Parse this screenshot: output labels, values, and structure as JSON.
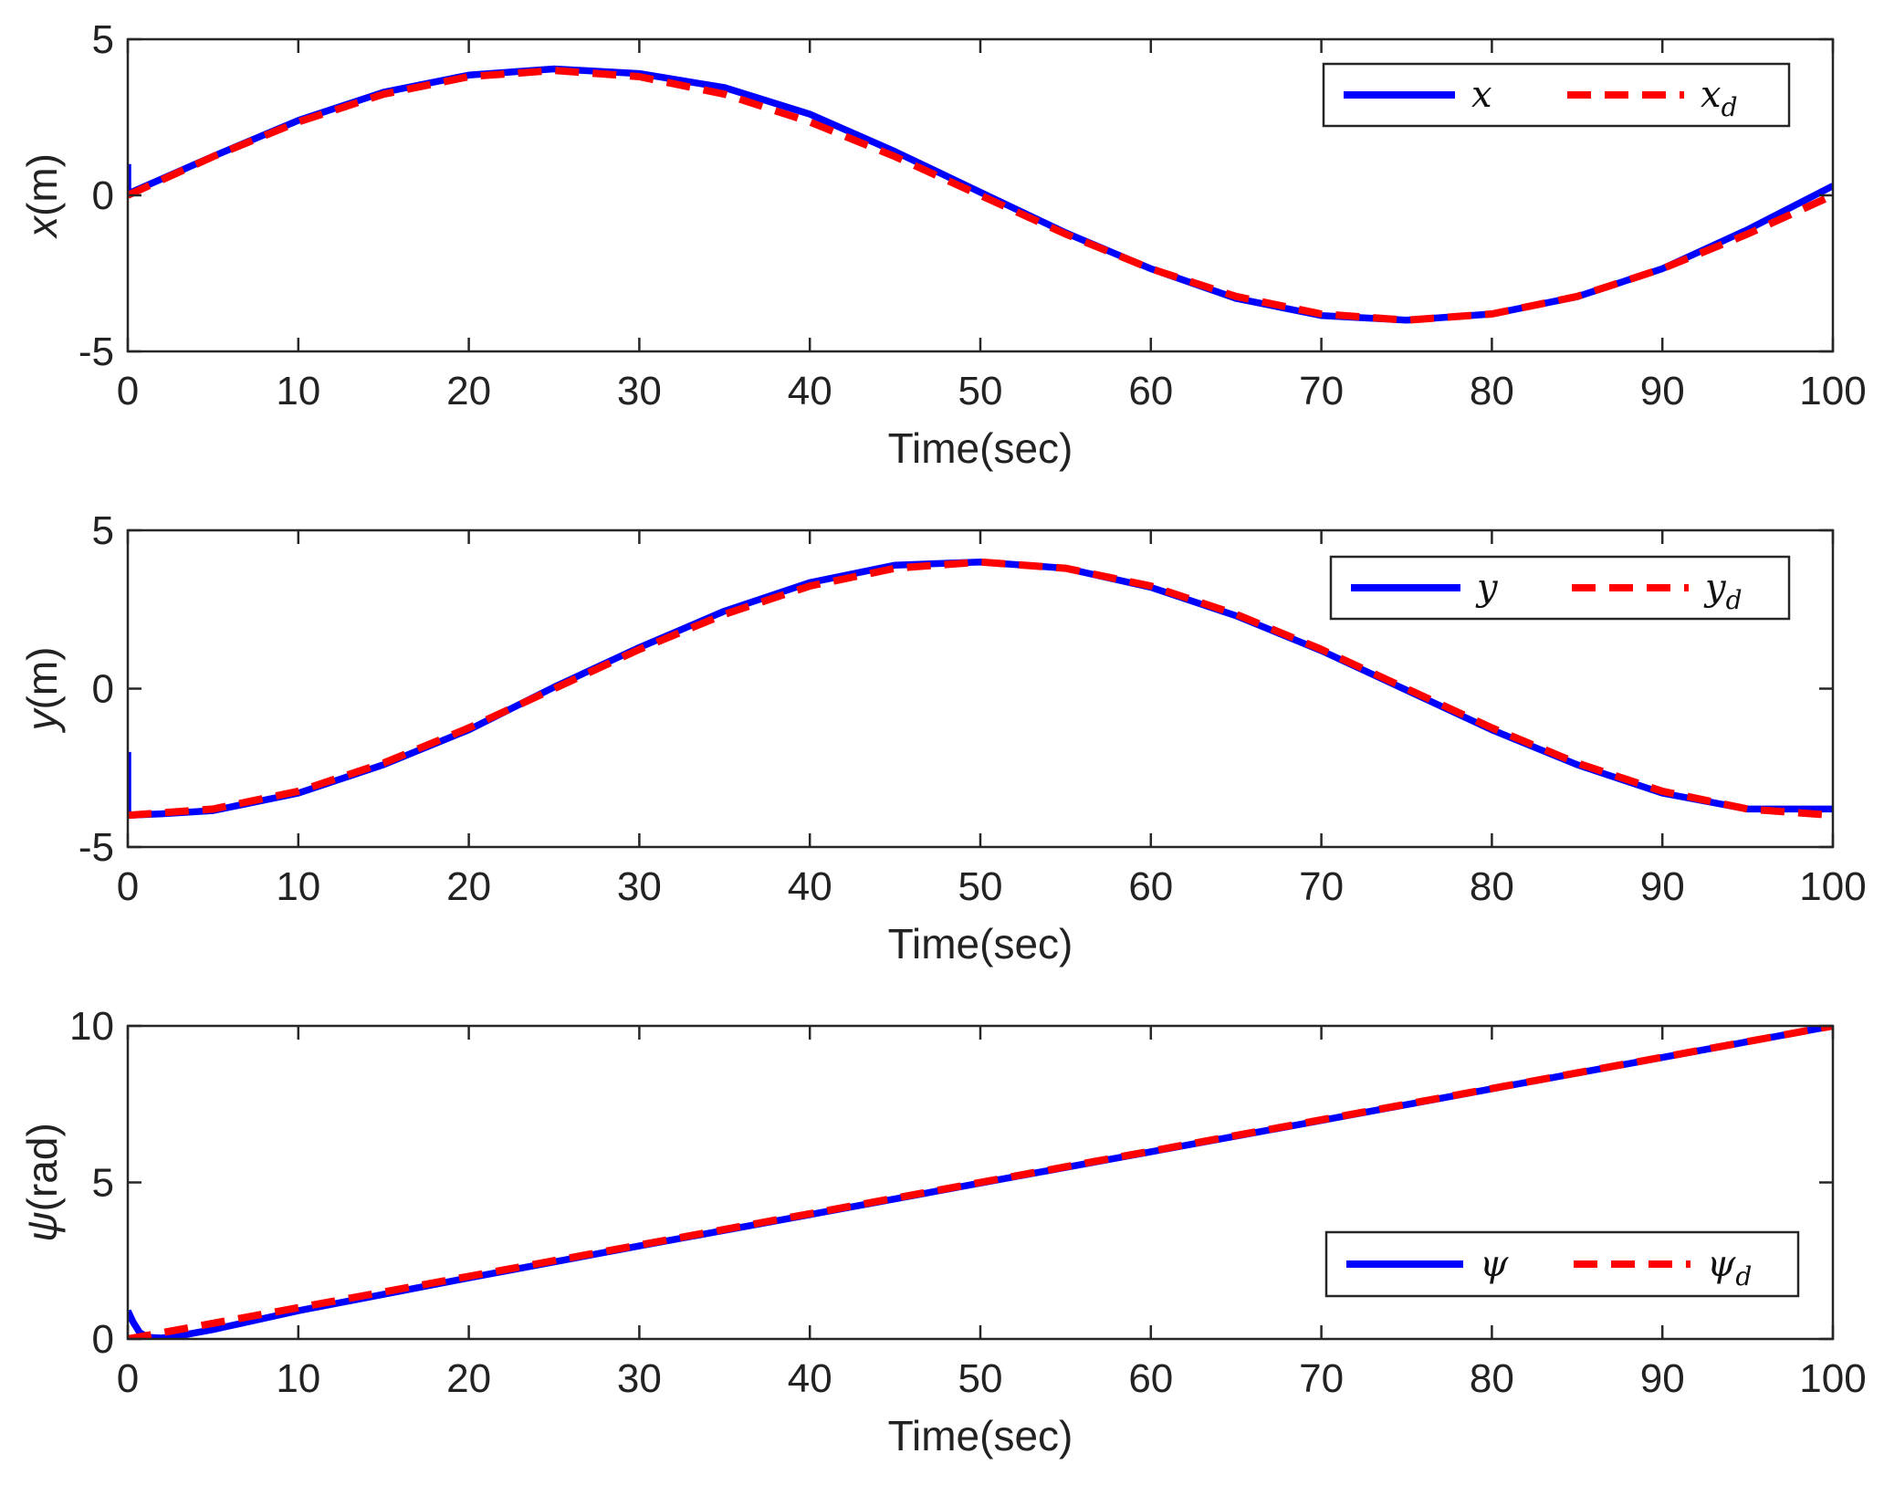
{
  "colors": {
    "actual": "#0000ff",
    "desired": "#ff0000",
    "axes": "#262626"
  },
  "chart_data": [
    {
      "type": "line",
      "xlabel": "Time(sec)",
      "ylabel": "x(m)",
      "ylabel_var": "x",
      "ylabel_unit": "(m)",
      "xlim": [
        0,
        100
      ],
      "ylim": [
        -5,
        5
      ],
      "xticks": [
        0,
        10,
        20,
        30,
        40,
        50,
        60,
        70,
        80,
        90,
        100
      ],
      "yticks": [
        -5,
        0,
        5
      ],
      "legend": {
        "position": "top-right",
        "actual": "x",
        "desired": "x",
        "desired_subscript": "d"
      },
      "series": [
        {
          "name": "x",
          "style": "solid",
          "color": "#0000ff",
          "x": [
            0,
            0,
            5,
            10,
            15,
            20,
            25,
            30,
            35,
            40,
            45,
            50,
            55,
            60,
            65,
            70,
            75,
            80,
            85,
            90,
            95,
            100
          ],
          "y": [
            1.0,
            0.05,
            1.25,
            2.4,
            3.3,
            3.85,
            4.05,
            3.9,
            3.45,
            2.6,
            1.4,
            0.1,
            -1.2,
            -2.35,
            -3.3,
            -3.85,
            -4.0,
            -3.8,
            -3.25,
            -2.35,
            -1.1,
            0.3
          ]
        },
        {
          "name": "x_d",
          "style": "dashed",
          "color": "#ff0000",
          "x": [
            0,
            5,
            10,
            15,
            20,
            25,
            30,
            35,
            40,
            45,
            50,
            55,
            60,
            65,
            70,
            75,
            80,
            85,
            90,
            95,
            100
          ],
          "y": [
            0,
            1.24,
            2.35,
            3.24,
            3.8,
            4.0,
            3.8,
            3.24,
            2.35,
            1.24,
            0,
            -1.24,
            -2.35,
            -3.24,
            -3.8,
            -4.0,
            -3.8,
            -3.24,
            -2.35,
            -1.24,
            0
          ]
        }
      ]
    },
    {
      "type": "line",
      "xlabel": "Time(sec)",
      "ylabel": "y(m)",
      "ylabel_var": "y",
      "ylabel_unit": "(m)",
      "xlim": [
        0,
        100
      ],
      "ylim": [
        -5,
        5
      ],
      "xticks": [
        0,
        10,
        20,
        30,
        40,
        50,
        60,
        70,
        80,
        90,
        100
      ],
      "yticks": [
        -5,
        0,
        5
      ],
      "legend": {
        "position": "top-right",
        "actual": "y",
        "desired": "y",
        "desired_subscript": "d"
      },
      "series": [
        {
          "name": "y",
          "style": "solid",
          "color": "#0000ff",
          "x": [
            0,
            0,
            2,
            5,
            10,
            15,
            20,
            25,
            30,
            35,
            40,
            45,
            50,
            55,
            60,
            65,
            70,
            75,
            80,
            85,
            90,
            95,
            100
          ],
          "y": [
            -2.0,
            -4.0,
            -3.95,
            -3.85,
            -3.3,
            -2.4,
            -1.3,
            0.05,
            1.3,
            2.45,
            3.35,
            3.9,
            4.0,
            3.8,
            3.2,
            2.3,
            1.2,
            -0.05,
            -1.3,
            -2.4,
            -3.3,
            -3.8,
            -3.8
          ]
        },
        {
          "name": "y_d",
          "style": "dashed",
          "color": "#ff0000",
          "x": [
            0,
            5,
            10,
            15,
            20,
            25,
            30,
            35,
            40,
            45,
            50,
            55,
            60,
            65,
            70,
            75,
            80,
            85,
            90,
            95,
            100
          ],
          "y": [
            -4.0,
            -3.8,
            -3.24,
            -2.35,
            -1.24,
            0,
            1.24,
            2.35,
            3.24,
            3.8,
            4.0,
            3.8,
            3.24,
            2.35,
            1.24,
            0,
            -1.24,
            -2.35,
            -3.24,
            -3.8,
            -4.0
          ]
        }
      ]
    },
    {
      "type": "line",
      "xlabel": "Time(sec)",
      "ylabel": "ψ(rad)",
      "ylabel_var": "ψ",
      "ylabel_unit": "(rad)",
      "xlim": [
        0,
        100
      ],
      "ylim": [
        0,
        10
      ],
      "xticks": [
        0,
        10,
        20,
        30,
        40,
        50,
        60,
        70,
        80,
        90,
        100
      ],
      "yticks": [
        0,
        5,
        10
      ],
      "legend": {
        "position": "bottom-right",
        "actual": "ψ",
        "desired": "ψ",
        "desired_subscript": "d"
      },
      "series": [
        {
          "name": "psi",
          "style": "solid",
          "color": "#0000ff",
          "x": [
            0,
            0.3,
            0.7,
            1.2,
            2,
            3,
            5,
            10,
            20,
            30,
            40,
            50,
            60,
            70,
            80,
            90,
            100
          ],
          "y": [
            0.9,
            0.55,
            0.2,
            0.05,
            0.03,
            0.1,
            0.3,
            0.9,
            1.95,
            2.97,
            3.97,
            4.98,
            5.98,
            6.98,
            7.99,
            8.99,
            10.0
          ]
        },
        {
          "name": "psi_d",
          "style": "dashed",
          "color": "#ff0000",
          "x": [
            0,
            100
          ],
          "y": [
            0,
            10
          ]
        }
      ]
    }
  ]
}
